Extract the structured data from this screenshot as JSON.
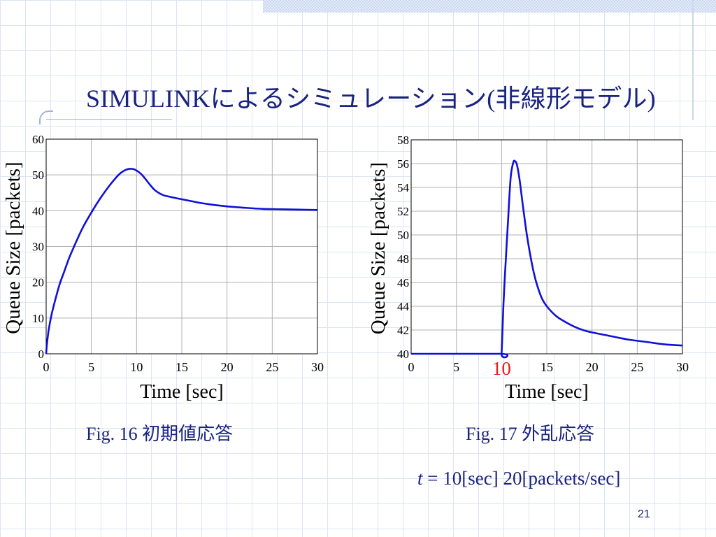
{
  "slide": {
    "title": "SIMULINKによるシミュレーション(非線形モデル)",
    "page_number": "21",
    "condition": {
      "var": "t",
      "eq": " = 10[sec]   20[packets/sec]"
    }
  },
  "colors": {
    "title": "#1a237e",
    "series": "#1010d8",
    "marker": "#e41a1a"
  },
  "chart_data": [
    {
      "type": "line",
      "caption": "Fig. 16  初期値応答",
      "xlabel": "Time [sec]",
      "ylabel": "Queue Size [packets]",
      "xlim": [
        0,
        30
      ],
      "ylim": [
        0,
        60
      ],
      "xticks": [
        0,
        5,
        10,
        15,
        20,
        25,
        30
      ],
      "yticks": [
        0,
        10,
        20,
        30,
        40,
        50,
        60
      ],
      "grid": true,
      "series": [
        {
          "x": [
            0,
            0.1,
            0.3,
            0.6,
            1,
            1.5,
            2,
            2.5,
            3,
            4,
            5,
            6,
            7,
            8,
            8.5,
            9,
            9.5,
            9.8,
            10,
            10.3,
            10.6,
            11,
            11.5,
            12,
            12.5,
            13,
            13.5,
            14,
            15,
            16,
            17,
            18,
            20,
            22,
            24,
            26,
            28,
            30
          ],
          "y": [
            0,
            3,
            7,
            11,
            15,
            19.5,
            23,
            26.5,
            29.5,
            35,
            39.5,
            43.5,
            47,
            50,
            51,
            51.6,
            51.7,
            51.5,
            51.2,
            50.7,
            50,
            48.8,
            47.2,
            45.8,
            44.9,
            44.3,
            44,
            43.7,
            43.2,
            42.7,
            42.2,
            41.8,
            41.2,
            40.8,
            40.5,
            40.4,
            40.3,
            40.2
          ]
        }
      ]
    },
    {
      "type": "line",
      "caption": "Fig. 17  外乱応答",
      "xlabel": "Time [sec]",
      "ylabel": "Queue Size [packets]",
      "xlim": [
        0,
        30
      ],
      "ylim": [
        40,
        58
      ],
      "xticks": [
        0,
        5,
        10,
        15,
        20,
        25,
        30
      ],
      "yticks": [
        40,
        42,
        44,
        46,
        48,
        50,
        52,
        54,
        56,
        58
      ],
      "highlight_tick": {
        "value": 10,
        "label": "10"
      },
      "grid": true,
      "series": [
        {
          "x": [
            0,
            9.9,
            10,
            10.2,
            10.4,
            10.7,
            11,
            11.3,
            11.5,
            11.7,
            12,
            12.4,
            12.8,
            13.2,
            13.6,
            14,
            14.5,
            15,
            16,
            17,
            18,
            19,
            20,
            22,
            24,
            26,
            28,
            30
          ],
          "y": [
            40,
            40,
            40,
            44,
            47,
            51,
            54.8,
            56.1,
            56.2,
            55.9,
            54.6,
            52.2,
            50,
            48.2,
            46.7,
            45.6,
            44.6,
            44,
            43.2,
            42.7,
            42.3,
            42,
            41.8,
            41.5,
            41.2,
            41,
            40.8,
            40.7
          ]
        }
      ]
    }
  ]
}
